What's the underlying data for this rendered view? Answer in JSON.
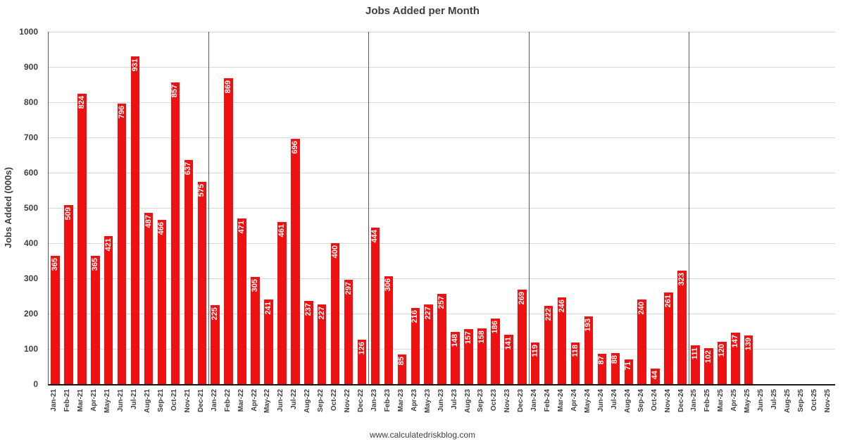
{
  "footer": "www.calculatedriskblog.com",
  "chart_data": {
    "type": "bar",
    "title": "Jobs Added per Month",
    "xlabel": "",
    "ylabel": "Jobs Added (000s)",
    "ylim": [
      0,
      1000
    ],
    "ytick_step": 100,
    "grid": true,
    "legend": "none",
    "bar_color": "#ee1111",
    "bar_label_color": "#ffffff",
    "categories": [
      "Jan-21",
      "Feb-21",
      "Mar-21",
      "Apr-21",
      "May-21",
      "Jun-21",
      "Jul-21",
      "Aug-21",
      "Sep-21",
      "Oct-21",
      "Nov-21",
      "Dec-21",
      "Jan-22",
      "Feb-22",
      "Mar-22",
      "Apr-22",
      "May-22",
      "Jun-22",
      "Jul-22",
      "Aug-22",
      "Sep-22",
      "Oct-22",
      "Nov-22",
      "Dec-22",
      "Jan-23",
      "Feb-23",
      "Mar-23",
      "Apr-23",
      "May-23",
      "Jun-23",
      "Jul-23",
      "Aug-23",
      "Sep-23",
      "Oct-23",
      "Nov-23",
      "Dec-23",
      "Jan-24",
      "Feb-24",
      "Mar-24",
      "Apr-24",
      "May-24",
      "Jun-24",
      "Jul-24",
      "Aug-24",
      "Sep-24",
      "Oct-24",
      "Nov-24",
      "Dec-24",
      "Jan-25",
      "Feb-25",
      "Mar-25",
      "Apr-25",
      "May-25",
      "Jun-25",
      "Jul-25",
      "Aug-25",
      "Sep-25",
      "Oct-25",
      "Nov-25"
    ],
    "values": [
      365,
      509,
      824,
      365,
      421,
      796,
      931,
      487,
      466,
      857,
      637,
      575,
      225,
      869,
      471,
      305,
      241,
      461,
      696,
      237,
      227,
      400,
      297,
      126,
      444,
      306,
      85,
      216,
      227,
      257,
      148,
      157,
      158,
      186,
      141,
      269,
      119,
      222,
      246,
      118,
      193,
      87,
      88,
      71,
      240,
      44,
      261,
      323,
      111,
      102,
      120,
      147,
      139,
      null,
      null,
      null,
      null,
      null,
      null
    ],
    "year_separator_after": [
      "Dec-21",
      "Dec-22",
      "Dec-23",
      "Dec-24"
    ]
  }
}
